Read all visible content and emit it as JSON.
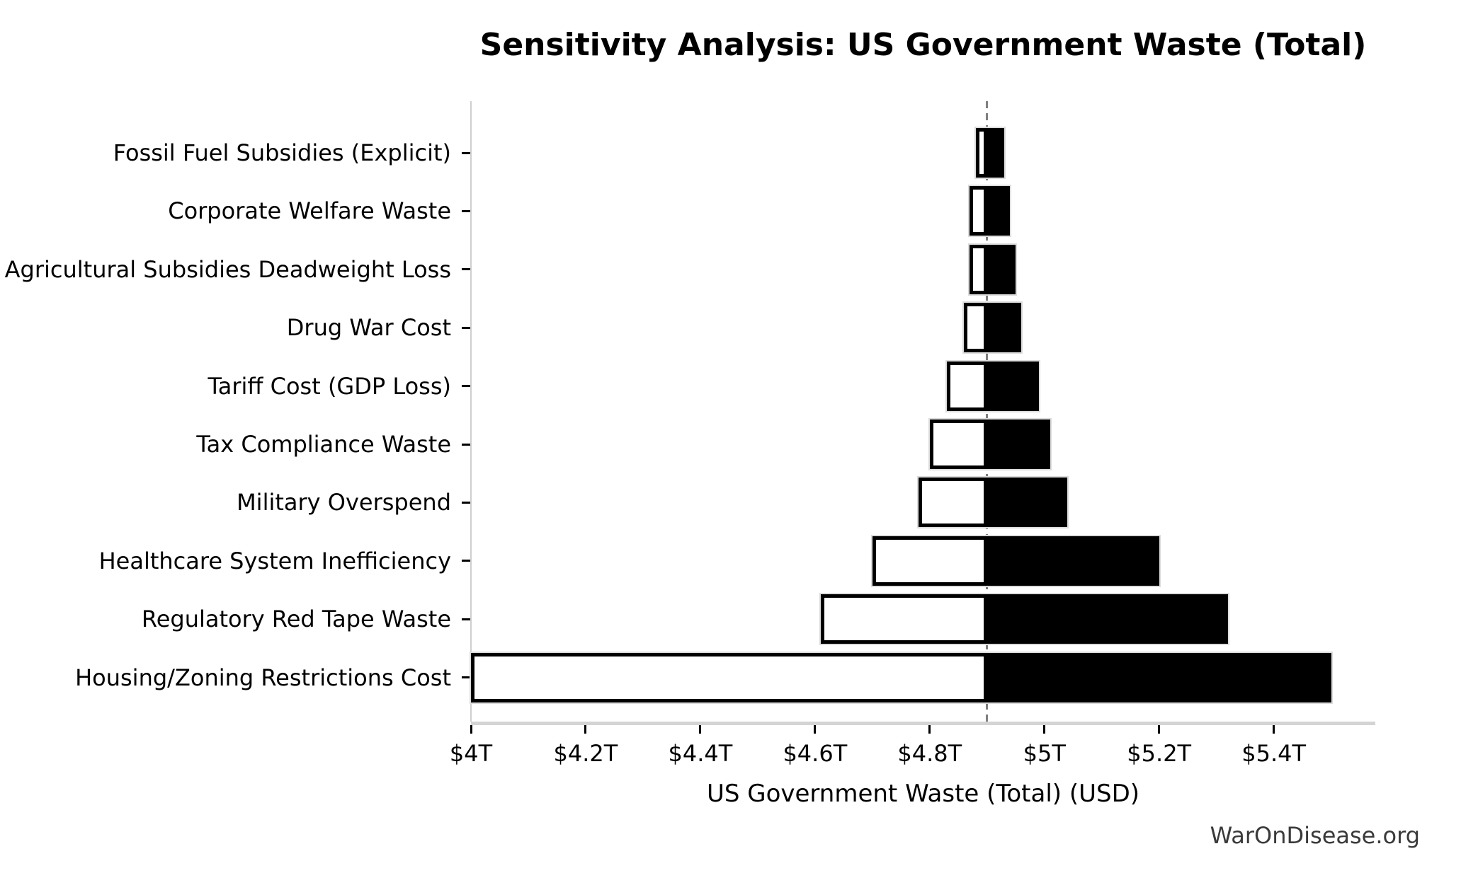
{
  "figure": {
    "title": "Sensitivity Analysis: US Government Waste (Total)",
    "x_axis_label": "US Government Waste (Total) (USD)",
    "watermark": "WarOnDisease.org"
  },
  "chart_data": {
    "type": "bar",
    "subtype": "tornado-sensitivity",
    "orientation": "horizontal",
    "title": "Sensitivity Analysis: US Government Waste (Total)",
    "xlabel": "US Government Waste (Total) (USD)",
    "unit": "trillion USD",
    "baseline_value": 4.9,
    "xlim": [
      4.0,
      5.577
    ],
    "grid": false,
    "legend": null,
    "x_ticks": [
      {
        "value": 4.0,
        "label": "$4T"
      },
      {
        "value": 4.2,
        "label": "$4.2T"
      },
      {
        "value": 4.4,
        "label": "$4.4T"
      },
      {
        "value": 4.6,
        "label": "$4.6T"
      },
      {
        "value": 4.8,
        "label": "$4.8T"
      },
      {
        "value": 5.0,
        "label": "$5T"
      },
      {
        "value": 5.2,
        "label": "$5.2T"
      },
      {
        "value": 5.4,
        "label": "$5.4T"
      }
    ],
    "bars": [
      {
        "label": "Fossil Fuel Subsidies (Explicit)",
        "low": 4.88,
        "high": 4.93
      },
      {
        "label": "Corporate Welfare Waste",
        "low": 4.87,
        "high": 4.94
      },
      {
        "label": "Agricultural Subsidies Deadweight Loss",
        "low": 4.87,
        "high": 4.95
      },
      {
        "label": "Drug War Cost",
        "low": 4.86,
        "high": 4.96
      },
      {
        "label": "Tariff Cost (GDP Loss)",
        "low": 4.83,
        "high": 4.99
      },
      {
        "label": "Tax Compliance Waste",
        "low": 4.8,
        "high": 5.01
      },
      {
        "label": "Military Overspend",
        "low": 4.78,
        "high": 5.04
      },
      {
        "label": "Healthcare System Inefficiency",
        "low": 4.7,
        "high": 5.2
      },
      {
        "label": "Regulatory Red Tape Waste",
        "low": 4.61,
        "high": 5.32
      },
      {
        "label": "Housing/Zoning Restrictions Cost",
        "low": 4.0,
        "high": 5.5
      }
    ],
    "colors": {
      "low_fill": "#ffffff",
      "high_fill": "#000000",
      "bar_edge": "#000000",
      "bar_halo": "#dcdcdc",
      "baseline_line": "#7f7f7f",
      "axis_line": "#d4d4d4",
      "text": "#000000",
      "watermark_text": "#3a3a3a"
    }
  }
}
